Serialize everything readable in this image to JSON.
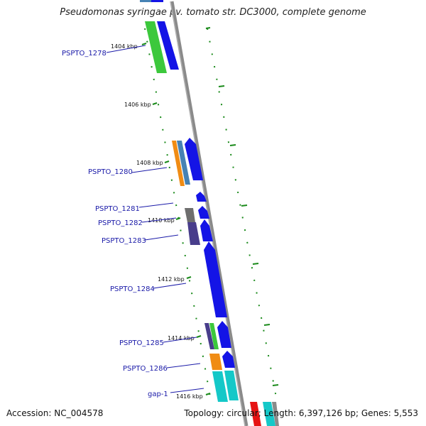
{
  "title": "Pseudomonas syringae pv. tomato str. DC3000, complete genome",
  "footer": {
    "accession": "Accession: NC_004578",
    "summary": "Topology: circular; Length: 6,397,126 bp; Genes: 5,553"
  },
  "tick_labels": [
    "1404 kbp",
    "1406 kbp",
    "1408 kbp",
    "1410 kbp",
    "1412 kbp",
    "1414 kbp",
    "1416 kbp"
  ],
  "gene_labels": [
    "PSPTO_1278",
    "PSPTO_1280",
    "PSPTO_1281",
    "PSPTO_1282",
    "PSPTO_1283",
    "PSPTO_1284",
    "PSPTO_1285",
    "PSPTO_1286",
    "gap-1"
  ],
  "colors": {
    "backbone": "#8a8a8a",
    "cds": "#1414e6",
    "tick": "#1a8a1a",
    "label": "#1a1aa8",
    "green": "#3cc83c",
    "orange": "#f08c14",
    "steelblue": "#4682b4",
    "grey": "#6e6e6e",
    "darkslate": "#483d8b",
    "cyan": "#14c8c8",
    "red": "#e61414"
  }
}
